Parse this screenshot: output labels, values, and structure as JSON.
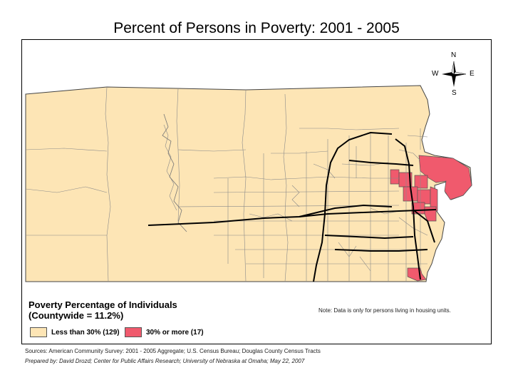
{
  "title": "Percent of Persons in Poverty: 2001 - 2005",
  "compass": {
    "n": "N",
    "s": "S",
    "e": "E",
    "w": "W"
  },
  "legend": {
    "title_line1": "Poverty Percentage of Individuals",
    "title_line2": "(Countywide = 11.2%)",
    "items": [
      {
        "label": "Less than 30% (129)",
        "color": "#fde5b5"
      },
      {
        "label": "30% or more (17)",
        "color": "#f05a6d"
      }
    ]
  },
  "note": "Note: Data is only for persons living in housing units.",
  "sources": "Sources: American Community Survey: 2001 - 2005 Aggregate; U.S. Census Bureau; Douglas County Census Tracts",
  "prepared_by": "Prepared by: David Drozd; Center for Public Affairs Research; University of Nebraska at Omaha; May 22, 2007",
  "colors": {
    "low": "#fde5b5",
    "high": "#f05a6d",
    "boundary": "#7a7a7a",
    "road": "#000000"
  }
}
